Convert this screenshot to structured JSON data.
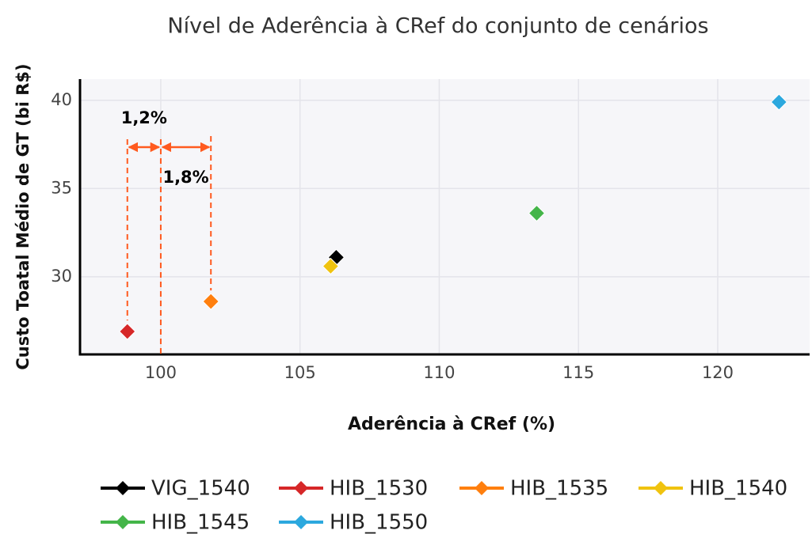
{
  "chart_data": {
    "type": "scatter",
    "title": "Nível de Aderência à CRef do conjunto de cenários",
    "x_label": "Aderência à CRef (%)",
    "y_label": "Custo Toatal Médio de GT (bi R$)",
    "annotations": [
      "1,2%",
      "1,8%"
    ],
    "xlim": [
      97.1,
      123.3
    ],
    "xticks": [
      100,
      105,
      110,
      115,
      120
    ],
    "ylim": [
      25.6,
      41.2
    ],
    "yticks": [
      30,
      35,
      40
    ],
    "grid": true,
    "series": [
      {
        "name": "VIG_1540",
        "color": "#000000",
        "x": [
          106.3
        ],
        "values": [
          31.1
        ]
      },
      {
        "name": "HIB_1530",
        "color": "#d62728",
        "x": [
          98.8
        ],
        "values": [
          26.9
        ]
      },
      {
        "name": "HIB_1535",
        "color": "#ff7f0e",
        "x": [
          101.8
        ],
        "values": [
          28.6
        ]
      },
      {
        "name": "HIB_1540",
        "color": "#f0c30f",
        "x": [
          106.1
        ],
        "values": [
          30.6
        ]
      },
      {
        "name": "HIB_1545",
        "color": "#44b549",
        "x": [
          113.5
        ],
        "values": [
          33.6
        ]
      },
      {
        "name": "HIB_1550",
        "color": "#2ca8de",
        "x": [
          122.2
        ],
        "values": [
          39.9
        ]
      }
    ]
  }
}
